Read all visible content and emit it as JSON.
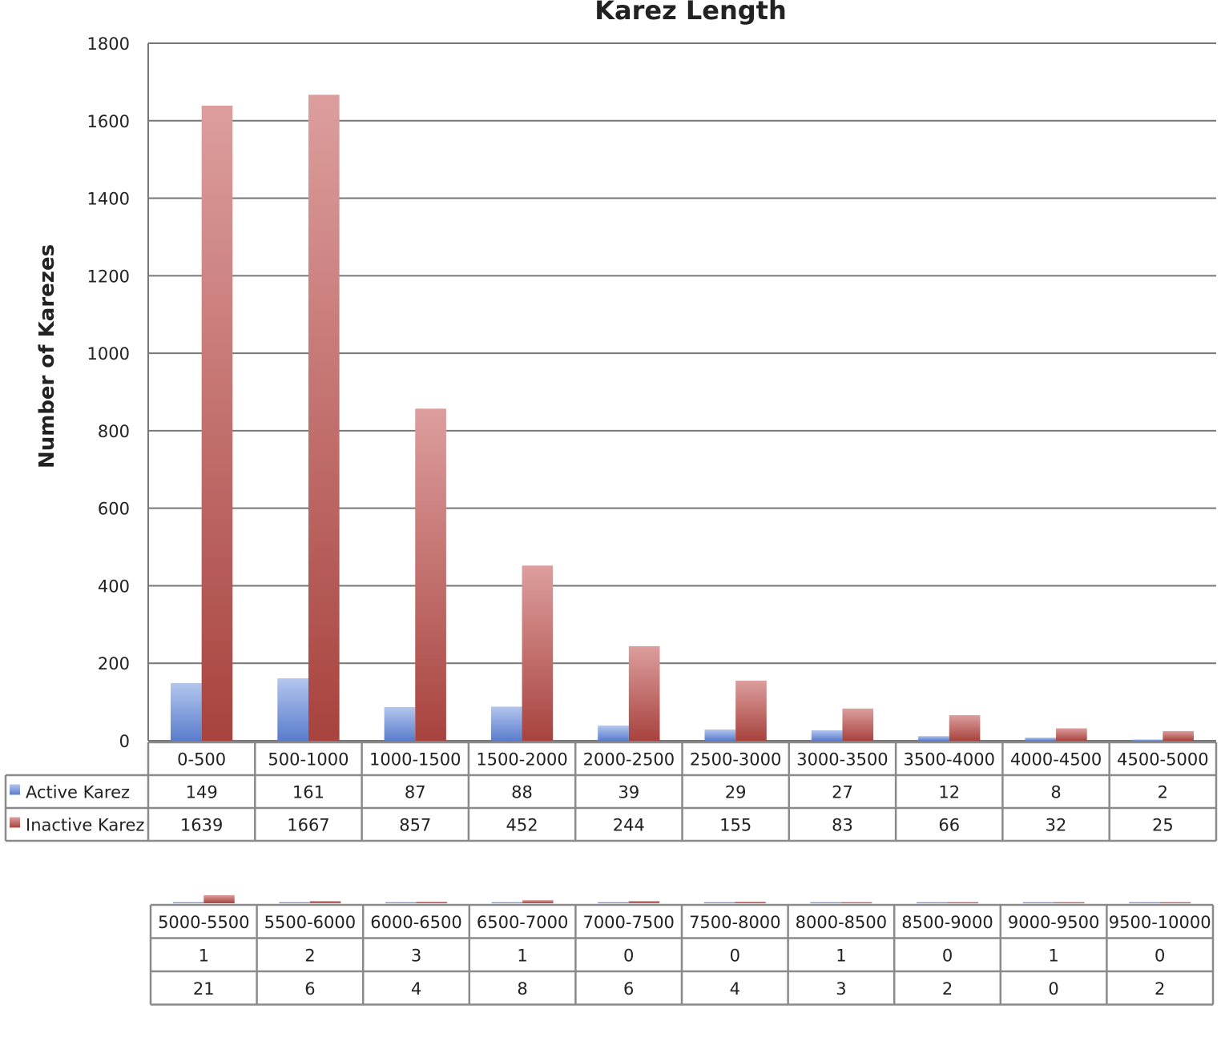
{
  "chart_data": [
    {
      "type": "bar",
      "title": "Karez Length",
      "xlabel": "",
      "ylabel": "Number of Karezes",
      "ylim": [
        0,
        1800
      ],
      "yticks": [
        0,
        200,
        400,
        600,
        800,
        1000,
        1200,
        1400,
        1600,
        1800
      ],
      "grid": true,
      "legend": "data-table",
      "categories": [
        "0-500",
        "500-1000",
        "1000-1500",
        "1500-2000",
        "2000-2500",
        "2500-3000",
        "3000-3500",
        "3500-4000",
        "4000-4500",
        "4500-5000"
      ],
      "series": [
        {
          "name": "Active Karez",
          "color": "#6a8ad4",
          "values": [
            149,
            161,
            87,
            88,
            39,
            29,
            27,
            12,
            8,
            2
          ]
        },
        {
          "name": "Inactive Karez",
          "color": "#b8504b",
          "values": [
            1639,
            1667,
            857,
            452,
            244,
            155,
            83,
            66,
            32,
            25
          ]
        }
      ]
    },
    {
      "type": "bar",
      "ylim": [
        0,
        1800
      ],
      "legend": "data-table",
      "categories": [
        "5000-5500",
        "5500-6000",
        "6000-6500",
        "6500-7000",
        "7000-7500",
        "7500-8000",
        "8000-8500",
        "8500-9000",
        "9000-9500",
        "9500-10000"
      ],
      "series": [
        {
          "name": "Active Karez",
          "color": "#6a8ad4",
          "values": [
            1,
            2,
            3,
            1,
            0,
            0,
            1,
            0,
            1,
            0
          ]
        },
        {
          "name": "Inactive Karez",
          "color": "#b8504b",
          "values": [
            21,
            6,
            4,
            8,
            6,
            4,
            3,
            2,
            0,
            2
          ]
        }
      ]
    }
  ]
}
